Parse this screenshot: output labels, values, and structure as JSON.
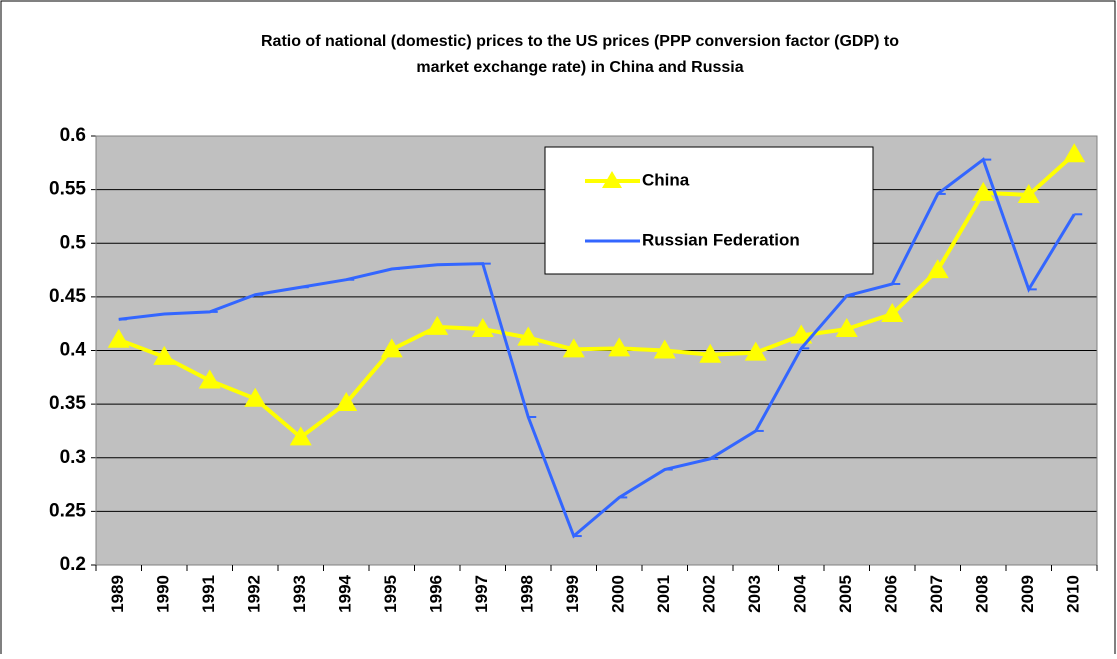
{
  "chart_data": {
    "type": "line",
    "title": [
      "Ratio of national (domestic) prices to the US prices (PPP conversion factor (GDP) to",
      "market exchange rate) in China and Russia"
    ],
    "categories": [
      "1989",
      "1990",
      "1991",
      "1992",
      "1993",
      "1994",
      "1995",
      "1996",
      "1997",
      "1998",
      "1999",
      "2000",
      "2001",
      "2002",
      "2003",
      "2004",
      "2005",
      "2006",
      "2007",
      "2008",
      "2009",
      "2010"
    ],
    "series": [
      {
        "name": "China",
        "color": "#ffff00",
        "marker": "triangle",
        "values": [
          0.41,
          0.394,
          0.372,
          0.355,
          0.319,
          0.351,
          0.401,
          0.422,
          0.42,
          0.412,
          0.401,
          0.402,
          0.4,
          0.396,
          0.398,
          0.414,
          0.42,
          0.434,
          0.475,
          0.547,
          0.545,
          0.583
        ]
      },
      {
        "name": "Russian Federation",
        "color": "#3366ff",
        "marker": "dash",
        "values": [
          0.429,
          0.434,
          0.436,
          0.452,
          0.459,
          0.466,
          0.476,
          0.48,
          0.481,
          0.338,
          0.227,
          0.263,
          0.289,
          0.299,
          0.325,
          0.402,
          0.451,
          0.462,
          0.546,
          0.578,
          0.457,
          0.527
        ]
      }
    ],
    "ylim": [
      0.2,
      0.6
    ],
    "yticks": [
      0.2,
      0.25,
      0.3,
      0.35,
      0.4,
      0.45,
      0.5,
      0.55,
      0.6
    ],
    "grid": true,
    "legend": "top-center"
  }
}
